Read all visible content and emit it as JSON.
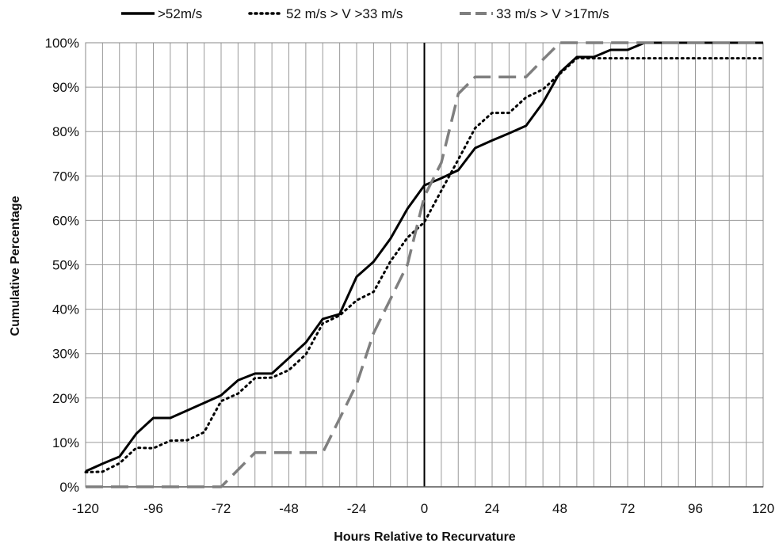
{
  "chart_data": {
    "type": "line",
    "title": "",
    "xlabel": "Hours Relative to Recurvature",
    "ylabel": "Cumulative Percentage",
    "xlim": [
      -120,
      120
    ],
    "ylim": [
      0,
      100
    ],
    "x_ticks": [
      -120,
      -96,
      -72,
      -48,
      -24,
      0,
      24,
      48,
      72,
      96,
      120
    ],
    "x_tick_labels": [
      "-120",
      "-96",
      "-72",
      "-48",
      "-24",
      "0",
      "24",
      "48",
      "72",
      "96",
      "120"
    ],
    "y_ticks": [
      0,
      10,
      20,
      30,
      40,
      50,
      60,
      70,
      80,
      90,
      100
    ],
    "y_tick_labels": [
      "0%",
      "10%",
      "20%",
      "30%",
      "40%",
      "50%",
      "60%",
      "70%",
      "80%",
      "90%",
      "100%"
    ],
    "minor_x_step": 6,
    "grid": true,
    "vertical_reference_x": 0,
    "legend_position": "top",
    "series": [
      {
        "name": ">52m/s",
        "style": "solid",
        "color": "#000000",
        "points": [
          [
            -120,
            3.5
          ],
          [
            -114,
            5.2
          ],
          [
            -108,
            6.8
          ],
          [
            -102,
            12
          ],
          [
            -96,
            15.5
          ],
          [
            -90,
            15.5
          ],
          [
            -84,
            17.2
          ],
          [
            -78,
            18.9
          ],
          [
            -72,
            20.6
          ],
          [
            -66,
            24
          ],
          [
            -60,
            25.5
          ],
          [
            -54,
            25.5
          ],
          [
            -48,
            29
          ],
          [
            -42,
            32.5
          ],
          [
            -36,
            37.8
          ],
          [
            -30,
            38.9
          ],
          [
            -24,
            47.3
          ],
          [
            -18,
            50.7
          ],
          [
            -12,
            55.9
          ],
          [
            -6,
            62.6
          ],
          [
            0,
            67.9
          ],
          [
            6,
            69.5
          ],
          [
            12,
            71.3
          ],
          [
            18,
            76.3
          ],
          [
            24,
            78
          ],
          [
            30,
            79.6
          ],
          [
            36,
            81.3
          ],
          [
            42,
            86.5
          ],
          [
            48,
            93.3
          ],
          [
            54,
            96.8
          ],
          [
            60,
            96.8
          ],
          [
            66,
            98.4
          ],
          [
            72,
            98.4
          ],
          [
            78,
            100
          ],
          [
            120,
            100
          ]
        ]
      },
      {
        "name": "52 m/s > V >33 m/s",
        "style": "dotted",
        "color": "#000000",
        "points": [
          [
            -120,
            3.3
          ],
          [
            -114,
            3.4
          ],
          [
            -108,
            5.3
          ],
          [
            -102,
            8.8
          ],
          [
            -96,
            8.7
          ],
          [
            -90,
            10.4
          ],
          [
            -84,
            10.5
          ],
          [
            -78,
            12.3
          ],
          [
            -72,
            19.3
          ],
          [
            -66,
            21
          ],
          [
            -60,
            24.5
          ],
          [
            -54,
            24.6
          ],
          [
            -48,
            26.3
          ],
          [
            -42,
            29.8
          ],
          [
            -36,
            36.8
          ],
          [
            -30,
            38.6
          ],
          [
            -24,
            42
          ],
          [
            -18,
            43.9
          ],
          [
            -12,
            50.8
          ],
          [
            -6,
            56.1
          ],
          [
            0,
            59.6
          ],
          [
            6,
            66.7
          ],
          [
            12,
            73.7
          ],
          [
            18,
            80.8
          ],
          [
            24,
            84.2
          ],
          [
            30,
            84.2
          ],
          [
            36,
            87.7
          ],
          [
            42,
            89.5
          ],
          [
            48,
            93
          ],
          [
            54,
            96.5
          ],
          [
            120,
            96.5
          ]
        ]
      },
      {
        "name": "33 m/s > V >17m/s",
        "style": "dashed",
        "color": "#7f7f7f",
        "points": [
          [
            -120,
            0
          ],
          [
            -72,
            0
          ],
          [
            -60,
            7.7
          ],
          [
            -36,
            7.7
          ],
          [
            -24,
            23.1
          ],
          [
            -18,
            34.6
          ],
          [
            -6,
            50
          ],
          [
            0,
            65.4
          ],
          [
            6,
            73
          ],
          [
            12,
            88.5
          ],
          [
            18,
            92.3
          ],
          [
            36,
            92.3
          ],
          [
            42,
            96.2
          ],
          [
            48,
            100
          ],
          [
            120,
            100
          ]
        ]
      }
    ]
  }
}
